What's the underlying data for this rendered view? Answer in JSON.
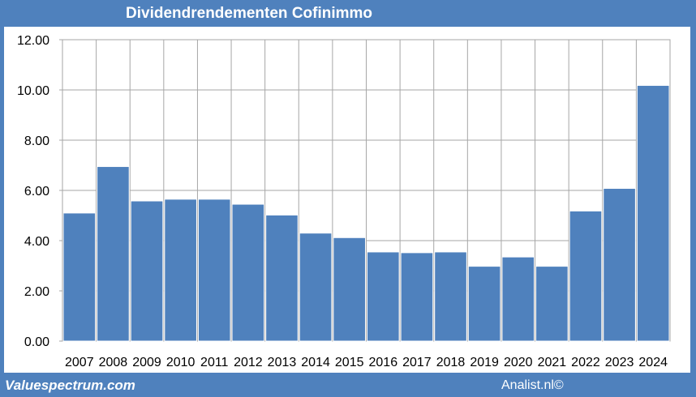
{
  "footer": {
    "source_left": "Valuespectrum.com",
    "source_right": "Analist.nl©"
  },
  "colors": {
    "frame": "#4f81bd",
    "bar": "#4f81bd",
    "bar_border": "#ffffff",
    "grid": "#a6a6a6"
  },
  "chart_data": {
    "type": "bar",
    "title": "Dividendrendementen Cofinimmo",
    "xlabel": "",
    "ylabel": "",
    "categories": [
      "2007",
      "2008",
      "2009",
      "2010",
      "2011",
      "2012",
      "2013",
      "2014",
      "2015",
      "2016",
      "2017",
      "2018",
      "2019",
      "2020",
      "2021",
      "2022",
      "2023",
      "2024"
    ],
    "values": [
      5.1,
      6.95,
      5.58,
      5.65,
      5.65,
      5.45,
      5.02,
      4.3,
      4.12,
      3.55,
      3.52,
      3.55,
      2.98,
      3.35,
      2.98,
      5.18,
      6.08,
      10.18
    ],
    "ylim": [
      0,
      12
    ],
    "yticks": [
      "0.00",
      "2.00",
      "4.00",
      "6.00",
      "8.00",
      "10.00",
      "12.00"
    ],
    "grid": true,
    "legend": "none"
  }
}
